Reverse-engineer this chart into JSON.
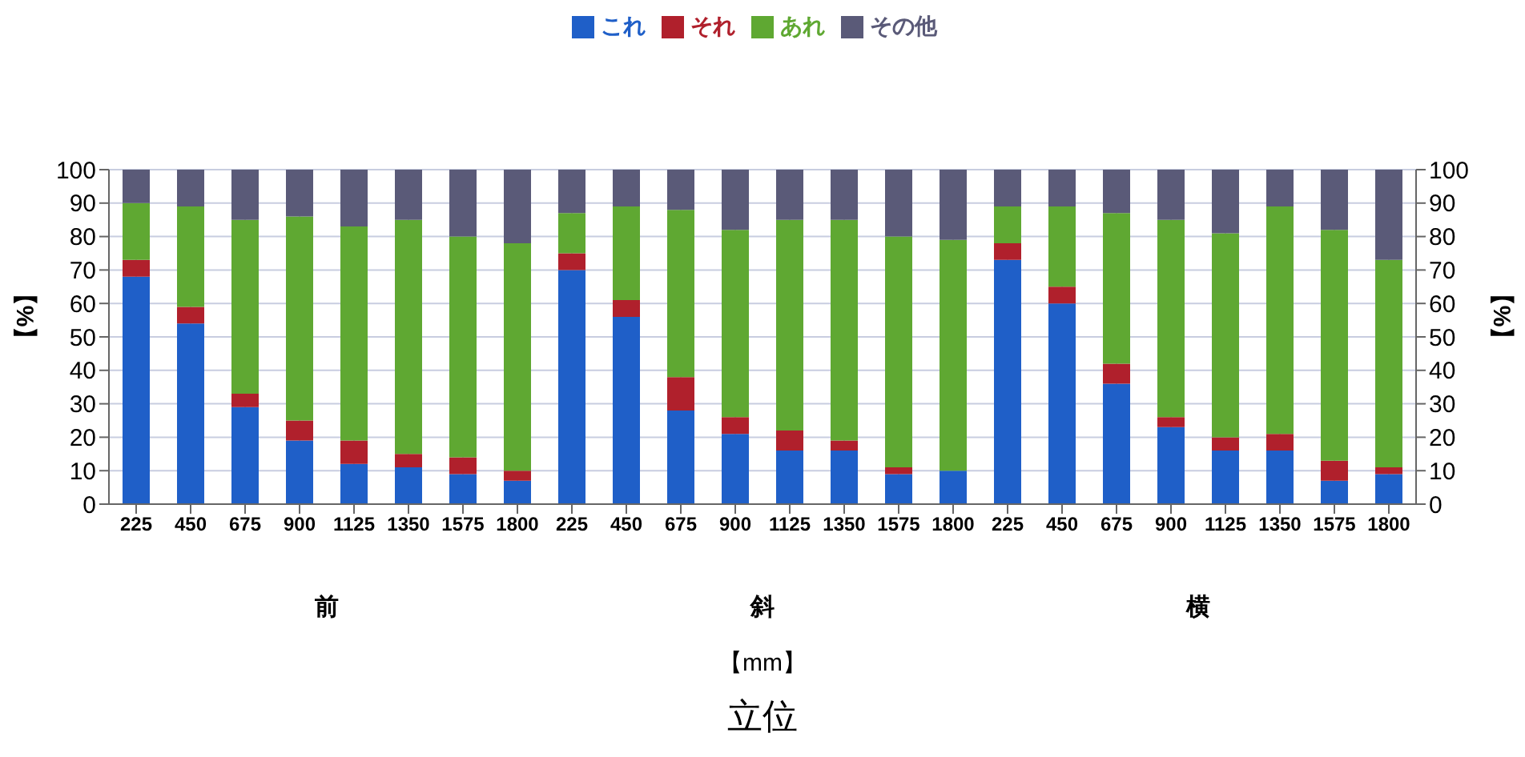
{
  "chart_data": {
    "type": "bar",
    "stacked": true,
    "title": "立位",
    "xlabel": "【mm】",
    "ylabel": "【%】",
    "y2label": "【%】",
    "annotations": [
      "前",
      "斜",
      "横"
    ],
    "categories": [
      "225",
      "450",
      "675",
      "900",
      "1125",
      "1350",
      "1575",
      "1800",
      "225",
      "450",
      "675",
      "900",
      "1125",
      "1350",
      "1575",
      "1800",
      "225",
      "450",
      "675",
      "900",
      "1125",
      "1350",
      "1575",
      "1800"
    ],
    "series": [
      {
        "name": "これ",
        "color": "#1f5fc8",
        "values": [
          68,
          54,
          29,
          19,
          12,
          11,
          9,
          7,
          70,
          56,
          28,
          21,
          16,
          16,
          9,
          10,
          73,
          60,
          36,
          23,
          16,
          16,
          7,
          9
        ]
      },
      {
        "name": "それ",
        "color": "#b0202c",
        "values": [
          5,
          5,
          4,
          6,
          7,
          4,
          5,
          3,
          5,
          5,
          10,
          5,
          6,
          3,
          2,
          0,
          5,
          5,
          6,
          3,
          4,
          5,
          6,
          2
        ]
      },
      {
        "name": "あれ",
        "color": "#5fa832",
        "values": [
          17,
          30,
          52,
          61,
          64,
          70,
          66,
          68,
          12,
          28,
          50,
          56,
          63,
          66,
          69,
          69,
          11,
          24,
          45,
          59,
          61,
          68,
          69,
          62
        ]
      },
      {
        "name": "その他",
        "color": "#5a5a78",
        "values": [
          10,
          11,
          15,
          14,
          17,
          15,
          20,
          22,
          13,
          11,
          12,
          18,
          15,
          15,
          20,
          21,
          11,
          11,
          13,
          15,
          19,
          11,
          18,
          27
        ]
      }
    ],
    "ylim": [
      0,
      100
    ],
    "yticks": [
      0,
      10,
      20,
      30,
      40,
      50,
      60,
      70,
      80,
      90,
      100
    ],
    "y2lim": [
      0,
      100
    ],
    "y2ticks": [
      0,
      10,
      20,
      30,
      40,
      50,
      60,
      70,
      80,
      90,
      100
    ],
    "grid": true,
    "legend": "top"
  }
}
